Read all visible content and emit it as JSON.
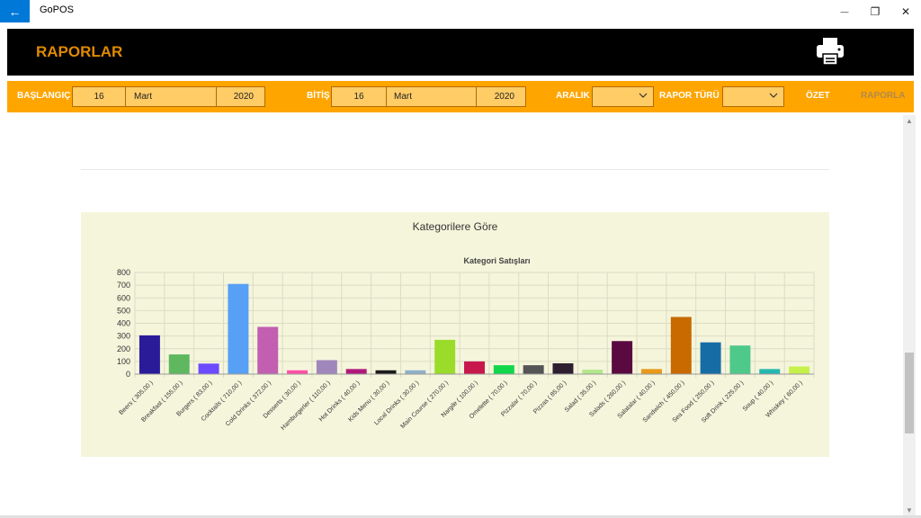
{
  "window": {
    "title": "GoPOS",
    "back_glyph": "←",
    "minimize_glyph": "—",
    "restore_glyph": "❐",
    "close_glyph": "✕"
  },
  "header": {
    "title": "RAPORLAR",
    "title_color": "#e08a00",
    "print_icon": "printer-icon"
  },
  "filters": {
    "start_label": "BAŞLANGIÇ",
    "start_day": "16",
    "start_month": "Mart",
    "start_year": "2020",
    "end_label": "BİTİŞ",
    "end_day": "16",
    "end_month": "Mart",
    "end_year": "2020",
    "range_label": "ARALIK",
    "range_value": "",
    "report_type_label": "RAPOR TÜRÜ",
    "report_type_value": "",
    "summary_button": "ÖZET",
    "report_button": "RAPORLA"
  },
  "card": {
    "title": "Kategorilere Göre"
  },
  "chart_data": {
    "type": "bar",
    "title": "Kategori Satışları",
    "ylim": [
      0,
      800
    ],
    "yticks": [
      0,
      100,
      200,
      300,
      400,
      500,
      600,
      700,
      800
    ],
    "grid": true,
    "categories": [
      "Beers ( 305,00 )",
      "Breakfast ( 155,00 )",
      "Burgers ( 83,00 )",
      "Cocktails ( 710,00 )",
      "Cold Drinks ( 372,00 )",
      "Desserts ( 30,00 )",
      "Hamburgerler ( 110,00 )",
      "Hot Drinks ( 40,00 )",
      "Kids Menu ( 30,00 )",
      "Local Drinks ( 30,00 )",
      "Main Course ( 270,00 )",
      "Nargile ( 100,00 )",
      "Omelette ( 70,00 )",
      "Pizzalar ( 70,00 )",
      "Pizzas ( 85,00 )",
      "Salad ( 35,00 )",
      "Salads ( 260,00 )",
      "Salatalar ( 40,00 )",
      "Sandwich ( 450,00 )",
      "Sea Food ( 250,00 )",
      "Soft Drink ( 225,00 )",
      "Soup ( 40,00 )",
      "Whiskey ( 60,00 )"
    ],
    "values": [
      305,
      155,
      83,
      710,
      372,
      30,
      110,
      40,
      30,
      30,
      270,
      100,
      70,
      70,
      85,
      35,
      260,
      40,
      450,
      250,
      225,
      40,
      60
    ],
    "colors": [
      "#2a1b99",
      "#5fb85f",
      "#6a4bff",
      "#57a0f5",
      "#c25fb0",
      "#ff4fa8",
      "#a087bb",
      "#b0187a",
      "#1a1a1a",
      "#8fb0c8",
      "#9bdc2a",
      "#c8174d",
      "#12d64a",
      "#555555",
      "#2e1f30",
      "#b4e88a",
      "#5a0a40",
      "#e89a1a",
      "#c86a00",
      "#166da6",
      "#4fc98a",
      "#26b8b0",
      "#c6f04a"
    ]
  }
}
